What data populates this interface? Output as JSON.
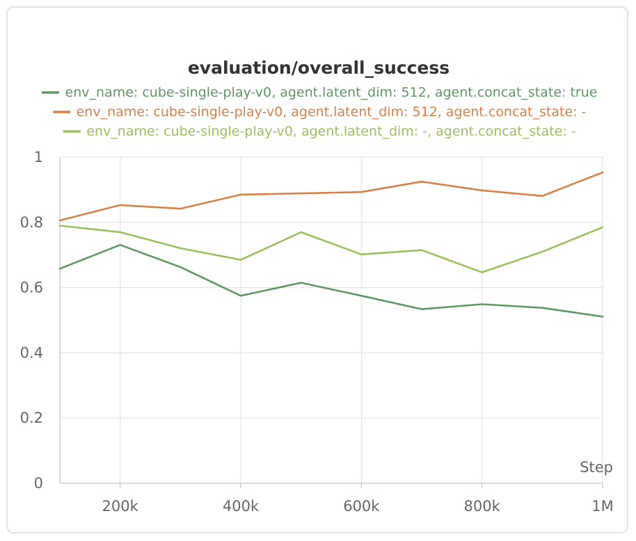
{
  "chart_data": {
    "type": "line",
    "title": "evaluation/overall_success",
    "xlabel": "Step",
    "ylabel": "",
    "xlim": [
      100000,
      1000000
    ],
    "ylim": [
      0,
      1
    ],
    "grid": true,
    "legend_position": "top",
    "x_ticks": [
      200000,
      400000,
      600000,
      800000,
      1000000
    ],
    "x_tick_labels": [
      "200k",
      "400k",
      "600k",
      "800k",
      "1M"
    ],
    "y_ticks": [
      0,
      0.2,
      0.4,
      0.6,
      0.8,
      1
    ],
    "y_tick_labels": [
      "0",
      "0.2",
      "0.4",
      "0.6",
      "0.8",
      "1"
    ],
    "x": [
      100000,
      200000,
      300000,
      400000,
      500000,
      600000,
      700000,
      800000,
      900000,
      1000000
    ],
    "series": [
      {
        "name": "env_name: cube-single-play-v0, agent.latent_dim: 512, agent.concat_state: true",
        "color": "#5f9864",
        "values": [
          0.658,
          0.731,
          0.663,
          0.575,
          0.615,
          0.575,
          0.534,
          0.549,
          0.538,
          0.511
        ]
      },
      {
        "name": "env_name: cube-single-play-v0, agent.latent_dim: 512, agent.concat_state: -",
        "color": "#d6804a",
        "values": [
          0.806,
          0.853,
          0.842,
          0.885,
          0.889,
          0.893,
          0.925,
          0.898,
          0.881,
          0.953
        ]
      },
      {
        "name": "env_name: cube-single-play-v0, agent.latent_dim: -, agent.concat_state: -",
        "color": "#9cc05e",
        "values": [
          0.79,
          0.77,
          0.721,
          0.685,
          0.77,
          0.702,
          0.715,
          0.647,
          0.71,
          0.785
        ]
      }
    ]
  }
}
